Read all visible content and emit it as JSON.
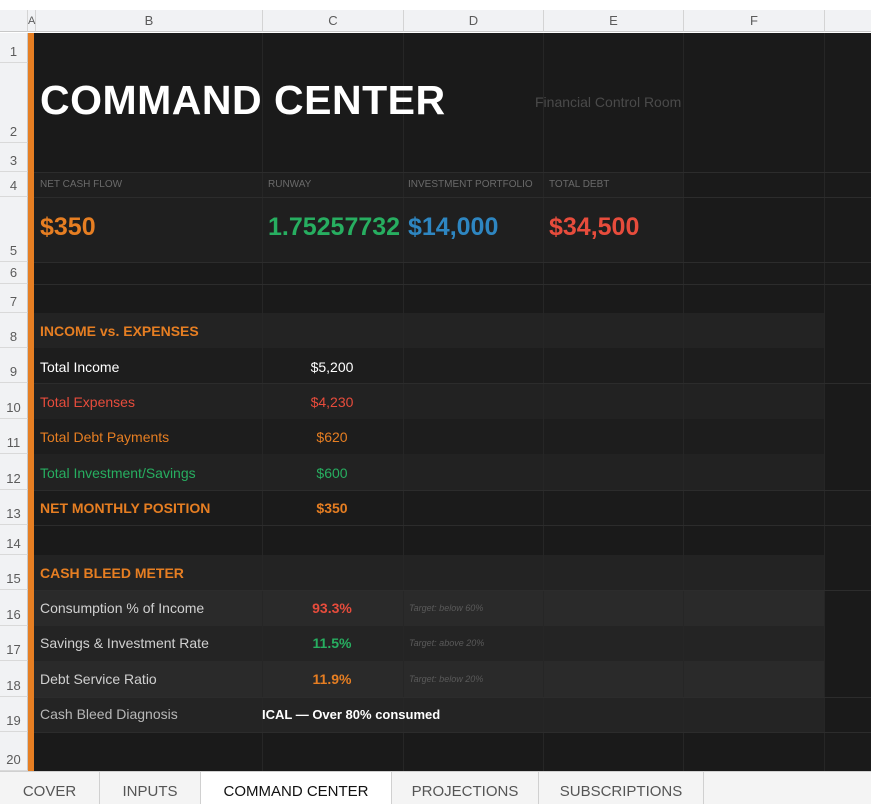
{
  "columns": [
    "A",
    "B",
    "C",
    "D",
    "E",
    "F"
  ],
  "rows": [
    "1",
    "2",
    "3",
    "4",
    "5",
    "6",
    "7",
    "8",
    "9",
    "10",
    "11",
    "12",
    "13",
    "14",
    "15",
    "16",
    "17",
    "18",
    "19",
    "20"
  ],
  "header": {
    "title": "COMMAND CENTER",
    "subtitle": "Financial Control Room"
  },
  "kpis": [
    {
      "label": "NET CASH FLOW",
      "value": "$350",
      "color": "#e67e22"
    },
    {
      "label": "RUNWAY",
      "value": "1.75257732",
      "color": "#27ae60"
    },
    {
      "label": "INVESTMENT PORTFOLIO",
      "value": "$14,000",
      "color": "#2e86c1"
    },
    {
      "label": "TOTAL DEBT",
      "value": "$34,500",
      "color": "#e74c3c"
    }
  ],
  "income_expenses": {
    "heading": "INCOME vs. EXPENSES",
    "rows": [
      {
        "label": "Total Income",
        "value": "$5,200",
        "color": "#ffffff"
      },
      {
        "label": "Total Expenses",
        "value": "$4,230",
        "color": "#e74c3c"
      },
      {
        "label": "Total Debt Payments",
        "value": "$620",
        "color": "#e67e22"
      },
      {
        "label": "Total Investment/Savings",
        "value": "$600",
        "color": "#27ae60"
      }
    ],
    "net": {
      "label": "NET MONTHLY POSITION",
      "value": "$350",
      "color": "#e67e22"
    }
  },
  "cash_bleed": {
    "heading": "CASH BLEED METER",
    "rows": [
      {
        "label": "Consumption % of Income",
        "value": "93.3%",
        "target": "Target: below 60%",
        "color": "#e74c3c"
      },
      {
        "label": "Savings & Investment Rate",
        "value": "11.5%",
        "target": "Target: above 20%",
        "color": "#27ae60"
      },
      {
        "label": "Debt Service Ratio",
        "value": "11.9%",
        "target": "Target: below 20%",
        "color": "#e67e22"
      }
    ],
    "diagnosis": {
      "label": "Cash Bleed Diagnosis",
      "value": "ICAL — Over 80% consumed"
    }
  },
  "sheet_tabs": [
    {
      "label": "COVER",
      "active": false
    },
    {
      "label": "INPUTS",
      "active": false
    },
    {
      "label": "COMMAND CENTER",
      "active": true
    },
    {
      "label": "PROJECTIONS",
      "active": false
    },
    {
      "label": "SUBSCRIPTIONS",
      "active": false
    }
  ]
}
